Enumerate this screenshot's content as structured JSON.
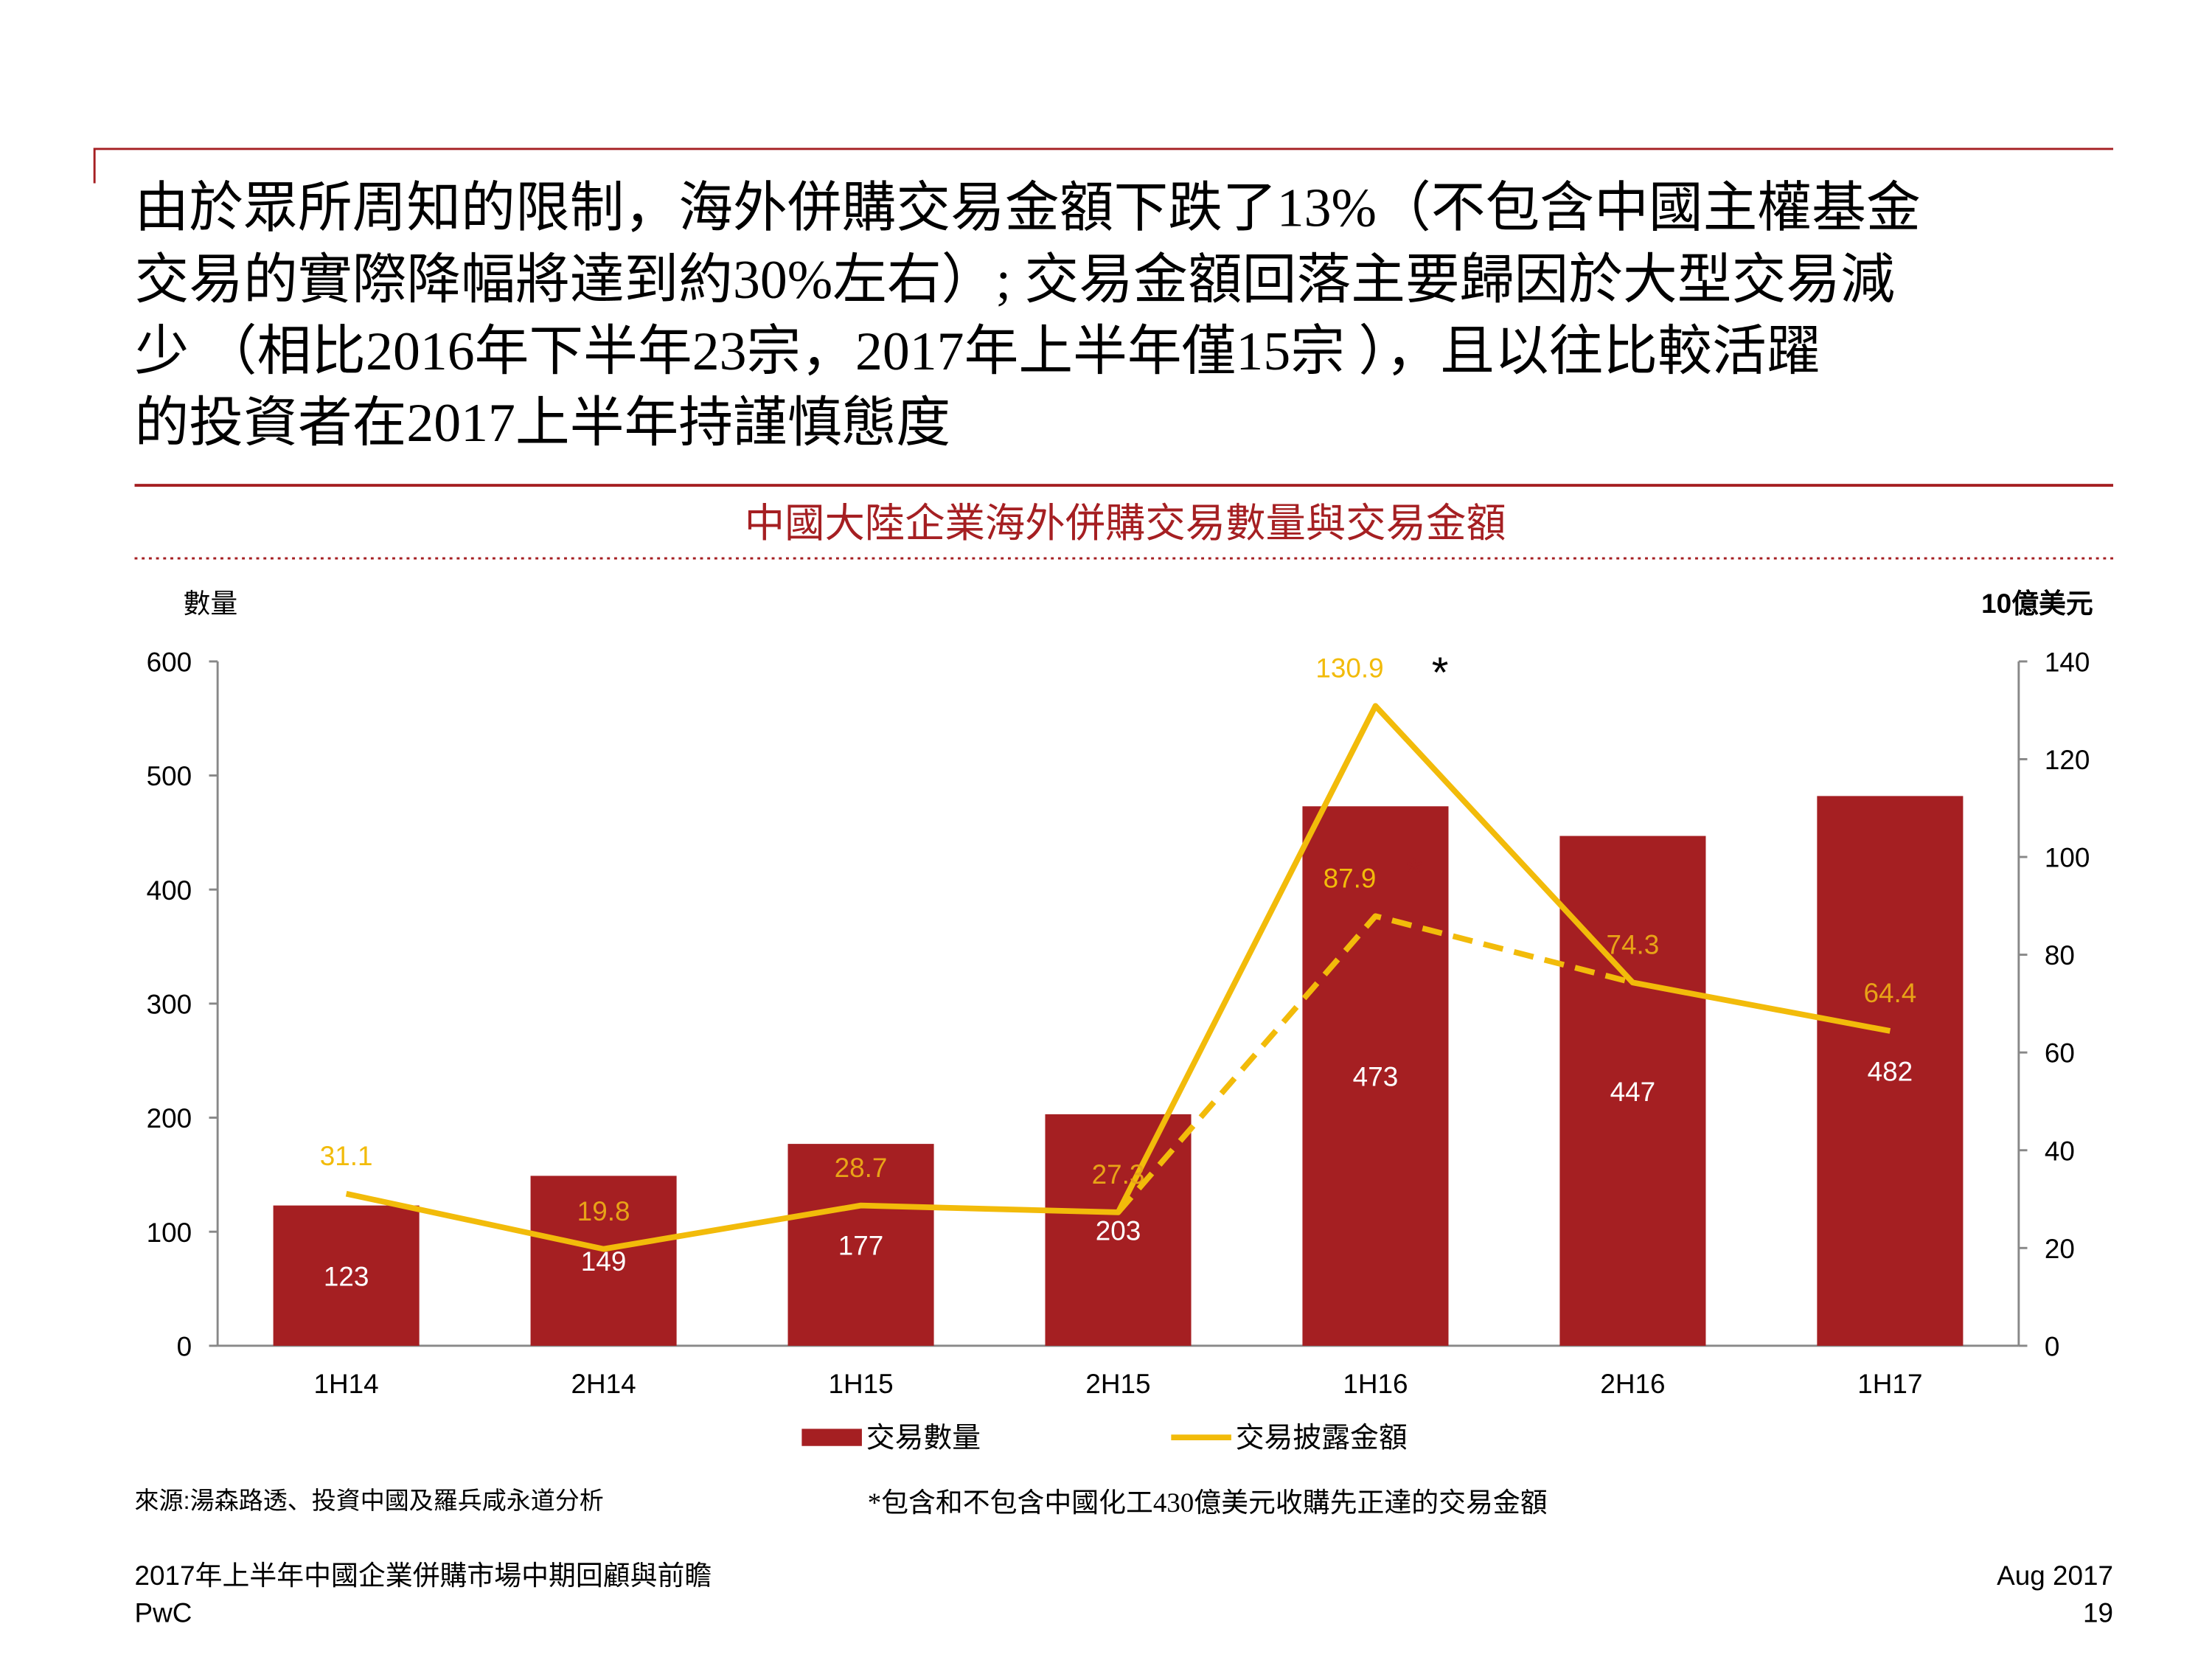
{
  "heading": [
    "由於眾所周知的限制，海外併購交易金額下跌了13%（不包含中國主權基金",
    "交易的實際降幅將達到約30%左右）; 交易金額回落主要歸因於大型交易減",
    "少 （相比2016年下半年23宗，2017年上半年僅15宗 ），且以往比較活躍",
    "的投資者在2017上半年持謹慎態度"
  ],
  "chart_data": {
    "type": "bar_line",
    "title": "中國大陸企業海外併購交易數量與交易金額",
    "y_label": "數量",
    "y2_label": "10億美元",
    "categories": [
      "1H14",
      "2H14",
      "1H15",
      "2H15",
      "1H16",
      "2H16",
      "1H17"
    ],
    "ylim": [
      0,
      600
    ],
    "yticks": [
      0,
      100,
      200,
      300,
      400,
      500,
      600
    ],
    "y2lim": [
      0,
      140
    ],
    "y2ticks": [
      0,
      20,
      40,
      60,
      80,
      100,
      120,
      140
    ],
    "series": [
      {
        "name": "交易數量",
        "type": "bar",
        "color": "#a51f22",
        "values": [
          123,
          149,
          177,
          203,
          473,
          447,
          482
        ]
      },
      {
        "name": "交易披露金額",
        "type": "line",
        "axis": "y2",
        "color": "#f2bb0a",
        "values": [
          31.1,
          19.8,
          28.7,
          27.3,
          130.9,
          74.3,
          64.4
        ]
      },
      {
        "type": "line",
        "axis": "y2",
        "dashed": true,
        "color": "#f2bb0a",
        "values": [
          null,
          null,
          null,
          27.3,
          87.9,
          74.3,
          null
        ]
      }
    ],
    "annotations": [
      "*",
      "*"
    ],
    "footnote": "*包含和不包含中國化工430億美元收購先正達的交易金額",
    "source": "來源:湯森路透、投資中國及羅兵咸永道分析"
  },
  "footer": {
    "left": [
      "2017年上半年中國企業併購市場中期回顧與前瞻",
      "PwC"
    ],
    "right": [
      "Aug 2017",
      "19"
    ]
  }
}
